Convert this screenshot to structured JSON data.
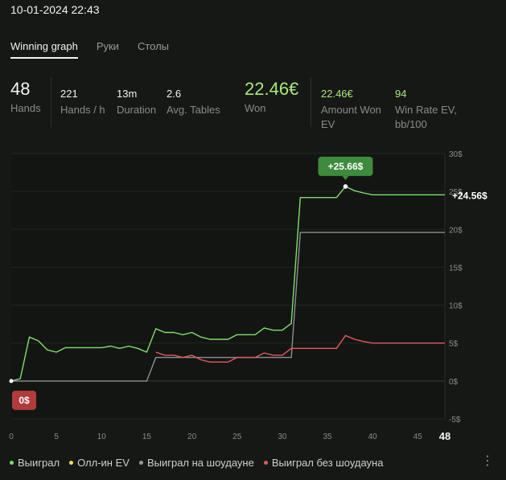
{
  "header": {
    "date": "10-01-2024 22:43"
  },
  "tabs": [
    {
      "label": "Winning graph",
      "active": true
    },
    {
      "label": "Руки",
      "active": false
    },
    {
      "label": "Столы",
      "active": false
    }
  ],
  "stats": {
    "hands": {
      "value": "48",
      "label": "Hands"
    },
    "hands_per_hour": {
      "value": "221",
      "label": "Hands / h"
    },
    "duration": {
      "value": "13m",
      "label": "Duration"
    },
    "avg_tables": {
      "value": "2.6",
      "label": "Avg. Tables"
    },
    "won": {
      "value": "22.46€",
      "label": "Won"
    },
    "amount_won_ev": {
      "value": "22.46€",
      "label_1": "Amount Won",
      "label_2": "EV"
    },
    "win_rate_ev": {
      "value": "94",
      "label_1": "Win Rate EV,",
      "label_2": "bb/100"
    }
  },
  "chart_data": {
    "type": "line",
    "x_ticks": [
      "0",
      "5",
      "10",
      "15",
      "20",
      "25",
      "30",
      "35",
      "40",
      "45"
    ],
    "x_last_label": "48",
    "y_ticks": [
      "30$",
      "25$",
      "20$",
      "15$",
      "10$",
      "5$",
      "0$",
      "-5$"
    ],
    "xlim": [
      0,
      48
    ],
    "ylim": [
      -5,
      30
    ],
    "annotations": {
      "peak": {
        "label": "+25.66$",
        "x": 37,
        "y": 25.66
      },
      "start": {
        "label": "0$",
        "x": 0,
        "y": 0
      },
      "end": {
        "label": "+24.56$",
        "x": 48,
        "y": 24.56
      }
    },
    "series": [
      {
        "name": "Выиграл",
        "color": "#7ee06a",
        "x": [
          0,
          1,
          2,
          3,
          4,
          5,
          6,
          7,
          8,
          9,
          10,
          11,
          12,
          13,
          14,
          15,
          16,
          17,
          18,
          19,
          20,
          21,
          22,
          23,
          24,
          25,
          26,
          27,
          28,
          29,
          30,
          31,
          32,
          33,
          34,
          35,
          36,
          37,
          38,
          39,
          40,
          41,
          42,
          43,
          44,
          45,
          46,
          47,
          48
        ],
        "y": [
          0,
          0.3,
          5.8,
          5.3,
          4.1,
          3.8,
          4.4,
          4.4,
          4.4,
          4.4,
          4.4,
          4.6,
          4.3,
          4.6,
          4.3,
          3.8,
          6.9,
          6.4,
          6.4,
          6.1,
          6.4,
          5.8,
          5.5,
          5.5,
          5.5,
          6.1,
          6.1,
          6.1,
          7.0,
          6.7,
          6.7,
          7.6,
          24.2,
          24.2,
          24.2,
          24.2,
          24.2,
          25.66,
          25.1,
          24.8,
          24.56,
          24.56,
          24.56,
          24.56,
          24.56,
          24.56,
          24.56,
          24.56,
          24.56
        ]
      },
      {
        "name": "Выиграл на шоудауне",
        "color": "#8e8e8e",
        "x": [
          0,
          15,
          16,
          17,
          18,
          19,
          20,
          21,
          22,
          23,
          24,
          25,
          26,
          27,
          28,
          29,
          30,
          31,
          32,
          33,
          34,
          35,
          36,
          37,
          38,
          39,
          40,
          41,
          42,
          43,
          44,
          45,
          46,
          47,
          48
        ],
        "y": [
          0,
          0,
          3.1,
          3.1,
          3.1,
          3.1,
          3.1,
          3.1,
          3.1,
          3.1,
          3.1,
          3.1,
          3.1,
          3.1,
          3.1,
          3.1,
          3.1,
          3.1,
          19.6,
          19.6,
          19.6,
          19.6,
          19.6,
          19.6,
          19.6,
          19.6,
          19.6,
          19.6,
          19.6,
          19.6,
          19.6,
          19.6,
          19.6,
          19.6,
          19.6
        ]
      },
      {
        "name": "Выиграл без шоудауна",
        "color": "#e15a5a",
        "x": [
          16,
          17,
          18,
          19,
          20,
          21,
          22,
          23,
          24,
          25,
          26,
          27,
          28,
          29,
          30,
          31,
          32,
          33,
          34,
          35,
          36,
          37,
          38,
          39,
          40,
          41,
          42,
          43,
          44,
          45,
          46,
          47,
          48
        ],
        "y": [
          3.8,
          3.4,
          3.4,
          3.1,
          3.4,
          2.8,
          2.5,
          2.5,
          2.5,
          3.1,
          3.1,
          3.1,
          3.7,
          3.4,
          3.4,
          4.3,
          4.3,
          4.3,
          4.3,
          4.3,
          4.3,
          6.0,
          5.5,
          5.2,
          5.0,
          5.0,
          5.0,
          5.0,
          5.0,
          5.0,
          5.0,
          5.0,
          5.0
        ]
      }
    ],
    "legend": [
      {
        "name": "Выиграл",
        "color": "#7ee06a"
      },
      {
        "name": "Олл-ин EV",
        "color": "#e8e05a"
      },
      {
        "name": "Выиграл на шоудауне",
        "color": "#9a9a9a"
      },
      {
        "name": "Выиграл без шоудауна",
        "color": "#e15a5a"
      }
    ],
    "grid": true,
    "legend_position": "bottom-left"
  },
  "footer": {
    "menu_icon": "⋮"
  }
}
